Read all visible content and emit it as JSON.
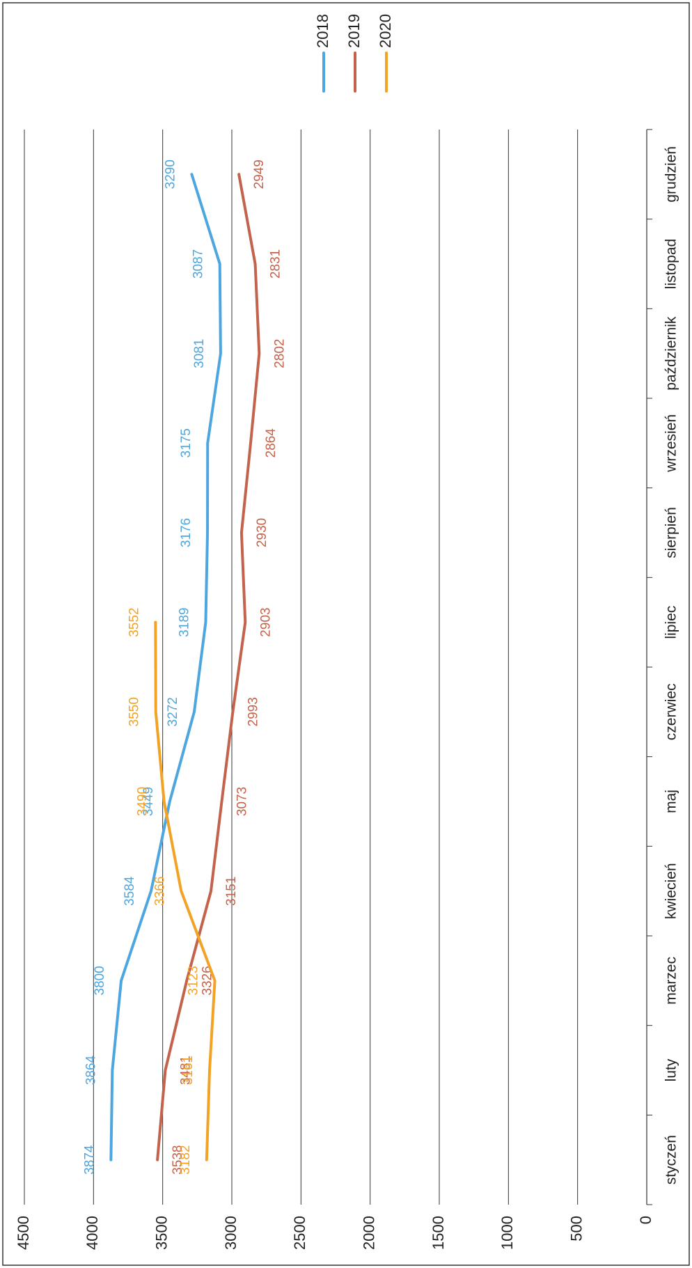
{
  "chart_data": {
    "type": "line",
    "categories": [
      "styczeń",
      "luty",
      "marzec",
      "kwiecień",
      "maj",
      "czerwiec",
      "lipiec",
      "sierpień",
      "wrzesień",
      "październik",
      "listopad",
      "grudzień"
    ],
    "series": [
      {
        "name": "2018",
        "color": "#4ea6de",
        "values": [
          3874,
          3864,
          3800,
          3584,
          3449,
          3272,
          3189,
          3176,
          3175,
          3081,
          3087,
          3290
        ]
      },
      {
        "name": "2019",
        "color": "#c4634b",
        "values": [
          3538,
          3481,
          3326,
          3151,
          3073,
          2993,
          2903,
          2930,
          2864,
          2802,
          2831,
          2949
        ]
      },
      {
        "name": "2020",
        "color": "#f2a325",
        "values": [
          3182,
          3161,
          3123,
          3366,
          3490,
          3550,
          3552,
          null,
          null,
          null,
          null,
          null
        ]
      }
    ],
    "ylim": [
      0,
      4500
    ],
    "yticks": [
      0,
      500,
      1000,
      1500,
      2000,
      2500,
      3000,
      3500,
      4000,
      4500
    ],
    "grid": true,
    "legend": "top-right"
  }
}
